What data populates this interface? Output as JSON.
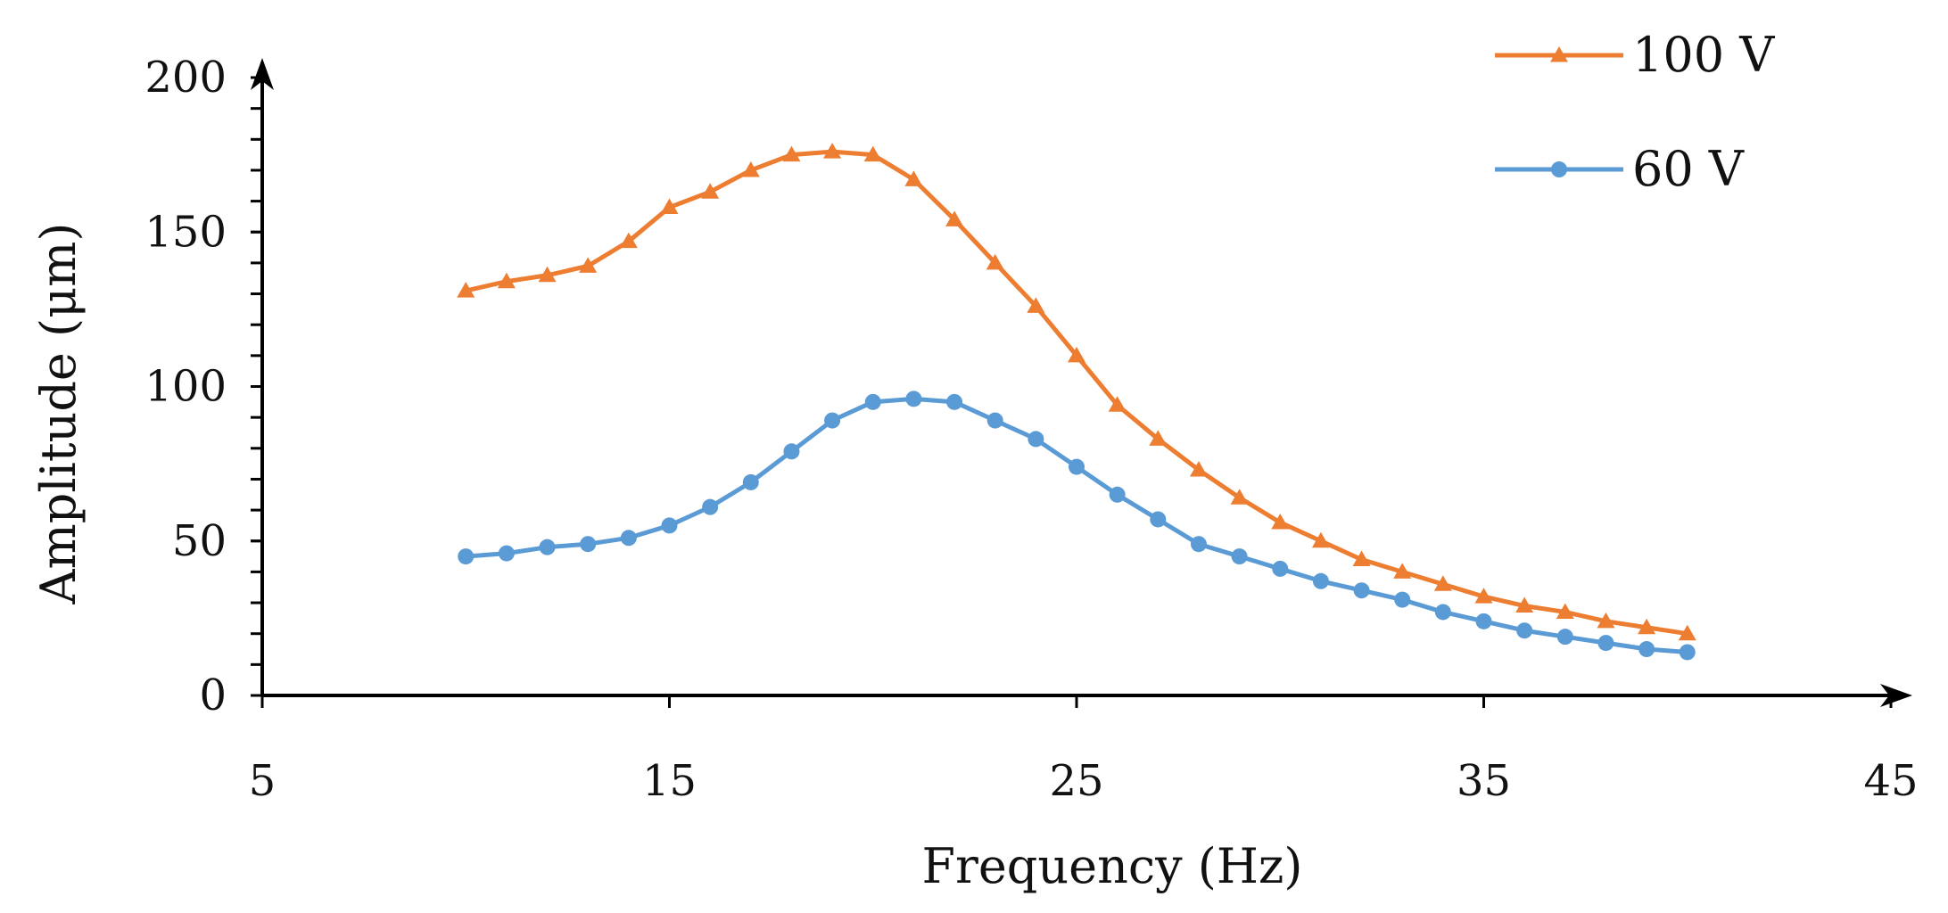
{
  "chart_data": {
    "type": "line",
    "title": "",
    "xlabel": "Frequency (Hz)",
    "ylabel": "Amplitude (μm)",
    "xlim": [
      5,
      45
    ],
    "ylim": [
      0,
      200
    ],
    "xticks": [
      5,
      15,
      25,
      35,
      45
    ],
    "yticks": [
      0,
      50,
      100,
      150,
      200
    ],
    "y_minor_step": 10,
    "grid": false,
    "legend_position": "top-right",
    "x": [
      10,
      11,
      12,
      13,
      14,
      15,
      16,
      17,
      18,
      19,
      20,
      21,
      22,
      23,
      24,
      25,
      26,
      27,
      28,
      29,
      30,
      31,
      32,
      33,
      34,
      35,
      36,
      37,
      38,
      39,
      40
    ],
    "series": [
      {
        "name": "100 V",
        "marker": "triangle",
        "color": "#ED7D31",
        "values": [
          131,
          134,
          136,
          139,
          147,
          158,
          163,
          170,
          175,
          176,
          175,
          167,
          154,
          140,
          126,
          110,
          94,
          83,
          73,
          64,
          56,
          50,
          44,
          40,
          36,
          32,
          29,
          27,
          24,
          22,
          20
        ]
      },
      {
        "name": "60 V",
        "marker": "circle",
        "color": "#5B9BD5",
        "values": [
          45,
          46,
          48,
          49,
          51,
          55,
          61,
          69,
          79,
          89,
          95,
          96,
          95,
          89,
          83,
          74,
          65,
          57,
          49,
          45,
          41,
          37,
          34,
          31,
          27,
          24,
          21,
          19,
          17,
          15,
          14
        ]
      }
    ]
  }
}
